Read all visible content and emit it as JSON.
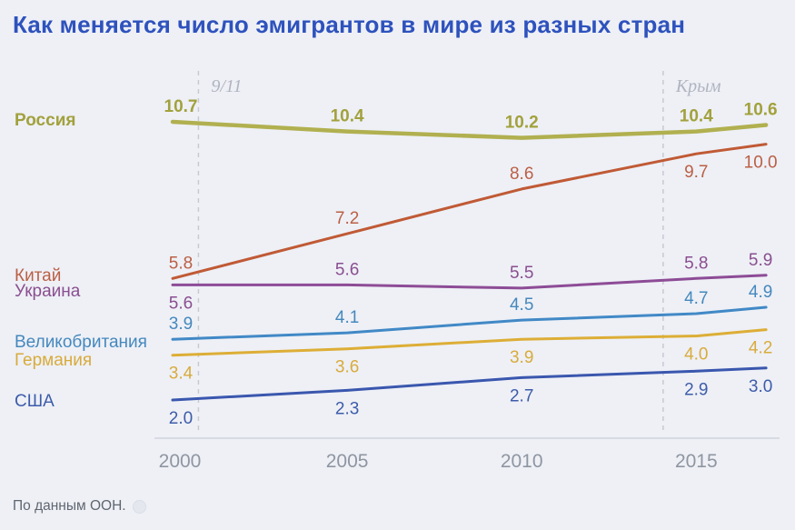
{
  "title": "Как меняется число эмигрантов в мире из разных стран",
  "source": "По данным ООН.",
  "colors": {
    "background": "#eef0f6",
    "title": "#2e52bd",
    "axis": "#d9dbe2",
    "tick_labels": "#8f96a1",
    "event_annotations": "#b0b4c0"
  },
  "chart_data": {
    "type": "line",
    "title": "Как меняется число эмигрантов в мире из разных стран",
    "x": [
      2000,
      2005,
      2010,
      2015,
      2017
    ],
    "x_ticks": [
      "2000",
      "2005",
      "2010",
      "2015"
    ],
    "x_range": [
      2000,
      2017
    ],
    "grid": false,
    "legend_position": "left",
    "series": [
      {
        "id": "russia",
        "name": "Россия",
        "color": "#b1b050",
        "label_color": "#a2a13c",
        "emphasis": true,
        "values": [
          10.7,
          10.4,
          10.2,
          10.4,
          10.6
        ],
        "label_sides": [
          "above",
          "above",
          "above",
          "above",
          "above"
        ]
      },
      {
        "id": "china",
        "name": "Китай",
        "color": "#c05a35",
        "label_color": "#bb5f44",
        "emphasis": false,
        "values": [
          5.8,
          7.2,
          8.6,
          9.7,
          10.0
        ],
        "label_sides": [
          "above",
          "above",
          "above",
          "below",
          "below"
        ]
      },
      {
        "id": "ukraine",
        "name": "Украина",
        "color": "#8d4c96",
        "label_color": "#8a4e8f",
        "emphasis": false,
        "values": [
          5.6,
          5.6,
          5.5,
          5.8,
          5.9
        ],
        "label_sides": [
          "below",
          "above",
          "above",
          "above",
          "above"
        ]
      },
      {
        "id": "uk",
        "name": "Великобритания",
        "color": "#4189c6",
        "label_color": "#4588bd",
        "emphasis": false,
        "values": [
          3.9,
          4.1,
          4.5,
          4.7,
          4.9
        ],
        "label_sides": [
          "above",
          "above",
          "above",
          "above",
          "above"
        ]
      },
      {
        "id": "germany",
        "name": "Германия",
        "color": "#ddae36",
        "label_color": "#d8ab3c",
        "emphasis": false,
        "values": [
          3.4,
          3.6,
          3.9,
          4.0,
          4.2
        ],
        "label_sides": [
          "below",
          "below",
          "below",
          "below",
          "below"
        ]
      },
      {
        "id": "usa",
        "name": "США",
        "color": "#3a57ae",
        "label_color": "#3d5ca9",
        "emphasis": false,
        "values": [
          2.0,
          2.3,
          2.7,
          2.9,
          3.0
        ],
        "label_sides": [
          "below",
          "below",
          "below",
          "below",
          "below"
        ]
      }
    ],
    "events": [
      {
        "label": "9/11",
        "year": 2001
      },
      {
        "label": "Крым",
        "year": 2014
      }
    ]
  }
}
